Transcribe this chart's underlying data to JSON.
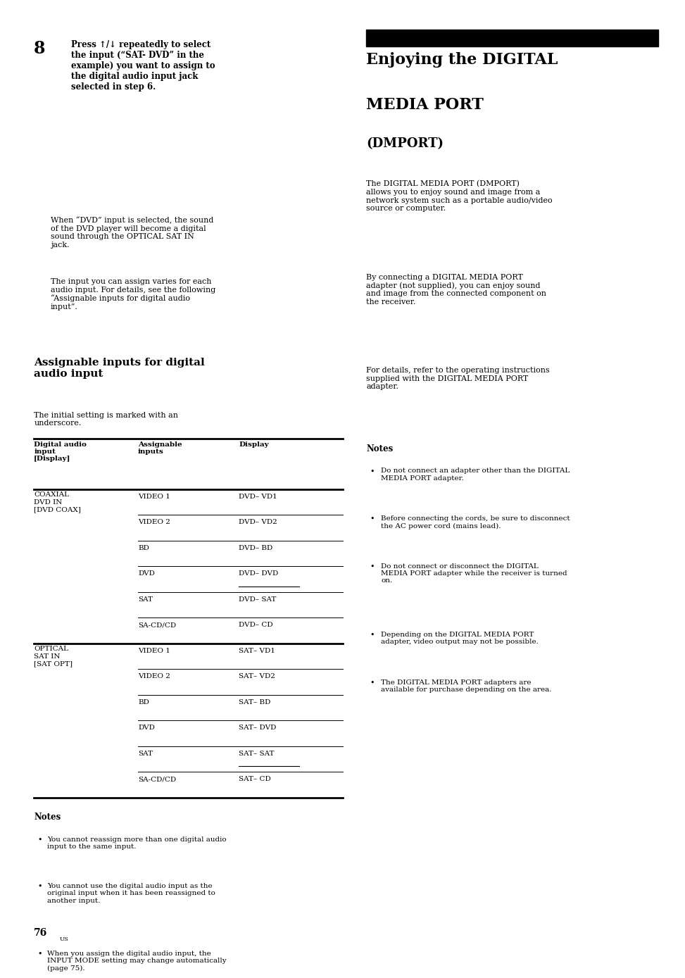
{
  "bg_color": "#ffffff",
  "text_color": "#000000",
  "left_col": {
    "step8_number": "8",
    "step8_bold": "Press ↑/↓ repeatedly to select\nthe input (“SAT- DVD” in the\nexample) you want to assign to\nthe digital audio input jack\nselected in step 6.",
    "step8_body1": "When “DVD” input is selected, the sound\nof the DVD player will become a digital\nsound through the OPTICAL SAT IN\njack.",
    "step8_body2": "The input you can assign varies for each\naudio input. For details, see the following\n“Assignable inputs for digital audio\ninput”.",
    "section_title": "Assignable inputs for digital\naudio input",
    "section_subtitle": "The initial setting is marked with an\nunderscore.",
    "table_header": [
      "Digital audio\ninput\n[Display]",
      "Assignable\ninputs",
      "Display"
    ],
    "table_rows": [
      [
        "COAXIAL\nDVD IN\n[DVD COAX]",
        "VIDEO 1",
        "DVD– VD1",
        false
      ],
      [
        "",
        "VIDEO 2",
        "DVD– VD2",
        false
      ],
      [
        "",
        "BD",
        "DVD– BD",
        false
      ],
      [
        "",
        "DVD",
        "DVD– DVD",
        true
      ],
      [
        "",
        "SAT",
        "DVD– SAT",
        false
      ],
      [
        "",
        "SA-CD/CD",
        "DVD– CD",
        false
      ],
      [
        "OPTICAL\nSAT IN\n[SAT OPT]",
        "VIDEO 1",
        "SAT– VD1",
        false
      ],
      [
        "",
        "VIDEO 2",
        "SAT– VD2",
        false
      ],
      [
        "",
        "BD",
        "SAT– BD",
        false
      ],
      [
        "",
        "DVD",
        "SAT– DVD",
        false
      ],
      [
        "",
        "SAT",
        "SAT– SAT",
        true
      ],
      [
        "",
        "SA-CD/CD",
        "SAT– CD",
        false
      ]
    ],
    "notes_title": "Notes",
    "notes_items": [
      "You cannot reassign more than one digital audio\ninput to the same input.",
      "You cannot use the digital audio input as the\noriginal input when it has been reassigned to\nanother input.",
      "When you assign the digital audio input, the\nINPUT MODE setting may change automatically\n(page 75)."
    ],
    "page_number": "76"
  },
  "right_col": {
    "title_line1": "Enjoying the DIGITAL",
    "title_line2": "MEDIA PORT",
    "subtitle": "(DMPORT)",
    "body_paragraphs": [
      "The DIGITAL MEDIA PORT (DMPORT)\nallows you to enjoy sound and image from a\nnetwork system such as a portable audio/video\nsource or computer.",
      "By connecting a DIGITAL MEDIA PORT\nadapter (not supplied), you can enjoy sound\nand image from the connected component on\nthe receiver.",
      "For details, refer to the operating instructions\nsupplied with the DIGITAL MEDIA PORT\nadapter."
    ],
    "notes_title": "Notes",
    "notes_items": [
      "Do not connect an adapter other than the DIGITAL\nMEDIA PORT adapter.",
      "Before connecting the cords, be sure to disconnect\nthe AC power cord (mains lead).",
      "Do not connect or disconnect the DIGITAL\nMEDIA PORT adapter while the receiver is turned\non.",
      "Depending on the DIGITAL MEDIA PORT\nadapter, video output may not be possible.",
      "The DIGITAL MEDIA PORT adapters are\navailable for purchase depending on the area."
    ]
  }
}
